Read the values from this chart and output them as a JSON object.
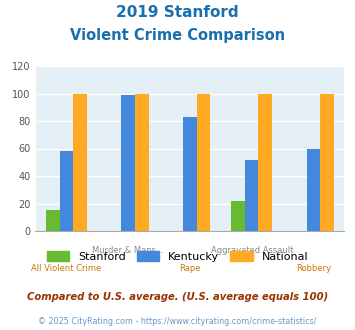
{
  "title_line1": "2019 Stanford",
  "title_line2": "Violent Crime Comparison",
  "title_color": "#1a6faf",
  "categories": [
    "All Violent Crime",
    "Murder & Mans...",
    "Rape",
    "Aggravated Assault",
    "Robbery"
  ],
  "top_labels": [
    "",
    "Murder & Mans...",
    "",
    "Aggravated Assault",
    ""
  ],
  "bot_labels": [
    "All Violent Crime",
    "",
    "Rape",
    "",
    "Robbery"
  ],
  "stanford": [
    15,
    0,
    0,
    22,
    0
  ],
  "kentucky": [
    58,
    99,
    83,
    52,
    60
  ],
  "national": [
    100,
    100,
    100,
    100,
    100
  ],
  "stanford_color": "#66bb33",
  "kentucky_color": "#4488dd",
  "national_color": "#ffaa22",
  "ylim": [
    0,
    120
  ],
  "yticks": [
    0,
    20,
    40,
    60,
    80,
    100,
    120
  ],
  "plot_bg": "#e4f0f5",
  "legend_labels": [
    "Stanford",
    "Kentucky",
    "National"
  ],
  "footnote1": "Compared to U.S. average. (U.S. average equals 100)",
  "footnote2": "© 2025 CityRating.com - https://www.cityrating.com/crime-statistics/",
  "footnote1_color": "#993300",
  "footnote2_color": "#6699cc"
}
